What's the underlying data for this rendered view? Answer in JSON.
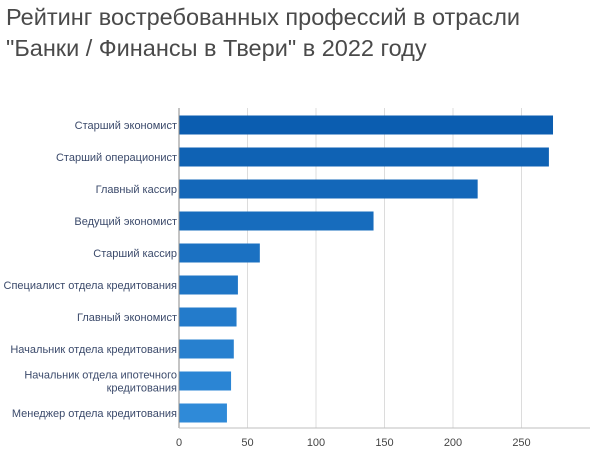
{
  "chart_data": {
    "type": "bar",
    "orientation": "horizontal",
    "title_lines": [
      "Рейтинг востребованных профессий в отрасли",
      "\"Банки / Финансы в Твери\" в 2022 году"
    ],
    "categories": [
      "Старший экономист",
      "Старший операционист",
      "Главный кассир",
      "Ведущий экономист",
      "Старший кассир",
      "Специалист отдела кредитования",
      "Главный экономист",
      "Начальник отдела кредитования",
      "Начальник отдела ипотечного кредитования",
      "Менеджер отдела кредитования"
    ],
    "label_lines": [
      [
        "Старший экономист"
      ],
      [
        "Старший операционист"
      ],
      [
        "Главный кассир"
      ],
      [
        "Ведущий экономист"
      ],
      [
        "Старший кассир"
      ],
      [
        "Специалист отдела кредитования"
      ],
      [
        "Главный экономист"
      ],
      [
        "Начальник отдела кредитования"
      ],
      [
        "Начальник отдела ипотечного",
        "кредитования"
      ],
      [
        "Менеджер отдела кредитования"
      ]
    ],
    "values": [
      273,
      270,
      218,
      142,
      59,
      43,
      42,
      40,
      38,
      35
    ],
    "xlim": [
      0,
      300
    ],
    "xticks": [
      0,
      50,
      100,
      150,
      200,
      250
    ],
    "grid": true,
    "colors": {
      "bar_dark": "#0b5db0",
      "bar_light": "#2f8ad8",
      "grid": "#dcdcdc",
      "axis": "#8a8a8a"
    }
  }
}
